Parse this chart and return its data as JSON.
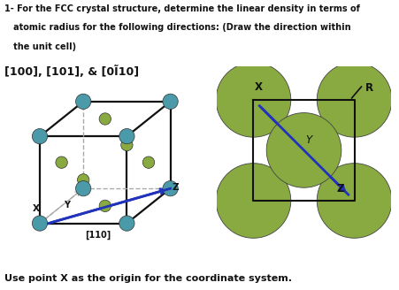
{
  "title_line1": "1- For the FCC crystal structure, determine the linear density in terms of",
  "title_line2": "   atomic radius for the following directions: (Draw the direction within",
  "title_line3": "   the unit cell)",
  "directions": "[100], [101], & [0Ĩ10]",
  "footer": "Use point X as the origin for the coordinate system.",
  "bg_color": "#ffffff",
  "corner_atom_color": "#4a9aaa",
  "face_atom_color": "#88aa40",
  "sphere_color": "#88aa40",
  "arrow_color": "#2233bb",
  "line_color": "#111111",
  "dashed_color": "#aaaaaa"
}
